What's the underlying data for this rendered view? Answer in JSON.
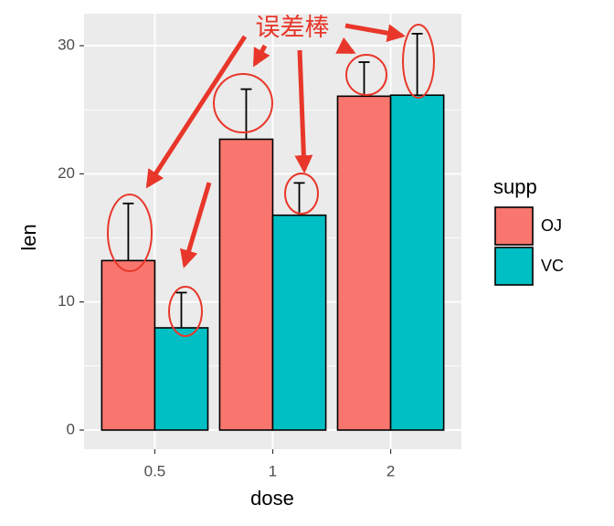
{
  "chart_data": {
    "type": "bar",
    "categories": [
      "0.5",
      "1",
      "2"
    ],
    "x_label": "dose",
    "y_label": "len",
    "legend_title": "supp",
    "annotation": "误差棒",
    "series": [
      {
        "name": "OJ",
        "color": "#F8766D",
        "values": [
          13.23,
          22.7,
          26.06
        ],
        "errors": [
          4.46,
          3.91,
          2.66
        ]
      },
      {
        "name": "VC",
        "color": "#00BFC4",
        "values": [
          7.98,
          16.77,
          26.14
        ],
        "errors": [
          2.75,
          2.52,
          4.8
        ]
      }
    ],
    "ylim": [
      -1.5,
      32.5
    ],
    "yticks": [
      0,
      10,
      20,
      30
    ],
    "minor_yticks": [
      5,
      15,
      25
    ],
    "grid": true
  }
}
